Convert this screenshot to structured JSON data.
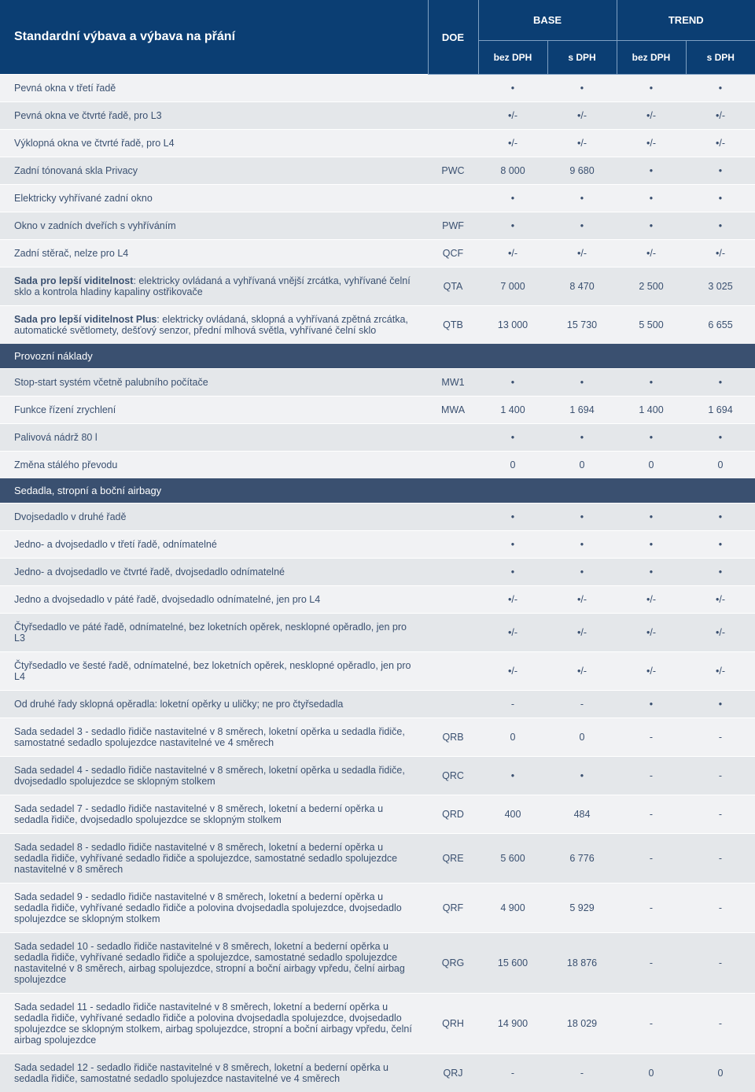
{
  "header": {
    "title": "Standardní výbava a výbava na přání",
    "doe": "DOE",
    "groups": [
      "BASE",
      "TREND"
    ],
    "subcols": [
      "bez DPH",
      "s DPH",
      "bez DPH",
      "s DPH"
    ]
  },
  "colors": {
    "header_bg": "#0b3e73",
    "header_border": "#7fa0c2",
    "section_bg": "#3a5070",
    "row_even": "#f1f2f4",
    "row_odd": "#e4e7ea",
    "text": "#3a5070"
  },
  "rows": [
    {
      "type": "data",
      "stripe": "even",
      "label": "Pevná okna v třetí řadě",
      "doe": "",
      "v": [
        "•",
        "•",
        "•",
        "•"
      ]
    },
    {
      "type": "data",
      "stripe": "odd",
      "label": "Pevná okna ve čtvrté řadě, pro L3",
      "doe": "",
      "v": [
        "•/-",
        "•/-",
        "•/-",
        "•/-"
      ]
    },
    {
      "type": "data",
      "stripe": "even",
      "label": "Výklopná okna ve čtvrté řadě, pro L4",
      "doe": "",
      "v": [
        "•/-",
        "•/-",
        "•/-",
        "•/-"
      ]
    },
    {
      "type": "data",
      "stripe": "odd",
      "label": "Zadní tónovaná skla Privacy",
      "doe": "PWC",
      "v": [
        "8 000",
        "9 680",
        "•",
        "•"
      ]
    },
    {
      "type": "data",
      "stripe": "even",
      "label": "Elektricky vyhřívané zadní okno",
      "doe": "",
      "v": [
        "•",
        "•",
        "•",
        "•"
      ]
    },
    {
      "type": "data",
      "stripe": "odd",
      "label": "Okno v zadních dveřích s vyhříváním",
      "doe": "PWF",
      "v": [
        "•",
        "•",
        "•",
        "•"
      ]
    },
    {
      "type": "data",
      "stripe": "even",
      "label": "Zadní stěrač, nelze pro L4",
      "doe": "QCF",
      "v": [
        "•/-",
        "•/-",
        "•/-",
        "•/-"
      ]
    },
    {
      "type": "data",
      "stripe": "odd",
      "bold": "Sada pro lepší viditelnost",
      "label": ": elektricky ovládaná a vyhřívaná vnější zrcátka, vyhřívané čelní sklo a kontrola hladiny kapaliny ostřikovače",
      "doe": "QTA",
      "v": [
        "7 000",
        "8 470",
        "2 500",
        "3 025"
      ]
    },
    {
      "type": "data",
      "stripe": "even",
      "bold": "Sada pro lepší viditelnost Plus",
      "label": ": elektricky ovládaná, sklopná  a vyhřívaná zpětná zrcátka, automatické světlomety, dešťový senzor, přední mlhová světla, vyhřívané čelní sklo",
      "doe": "QTB",
      "v": [
        "13 000",
        "15 730",
        "5 500",
        "6 655"
      ]
    },
    {
      "type": "section",
      "label": "Provozní náklady"
    },
    {
      "type": "data",
      "stripe": "odd",
      "label": "Stop-start systém včetně palubního počítače",
      "doe": "MW1",
      "v": [
        "•",
        "•",
        "•",
        "•"
      ]
    },
    {
      "type": "data",
      "stripe": "even",
      "label": "Funkce řízení zrychlení",
      "doe": "MWA",
      "v": [
        "1 400",
        "1 694",
        "1 400",
        "1 694"
      ]
    },
    {
      "type": "data",
      "stripe": "odd",
      "label": "Palivová nádrž 80 l",
      "doe": "",
      "v": [
        "•",
        "•",
        "•",
        "•"
      ]
    },
    {
      "type": "data",
      "stripe": "even",
      "label": "Změna stálého převodu",
      "doe": "",
      "v": [
        "0",
        "0",
        "0",
        "0"
      ]
    },
    {
      "type": "section",
      "label": "Sedadla, stropní a boční airbagy"
    },
    {
      "type": "data",
      "stripe": "odd",
      "label": "Dvojsedadlo v druhé řadě",
      "doe": "",
      "v": [
        "•",
        "•",
        "•",
        "•"
      ]
    },
    {
      "type": "data",
      "stripe": "even",
      "label": "Jedno- a dvojsedadlo v třetí řadě, odnímatelné",
      "doe": "",
      "v": [
        "•",
        "•",
        "•",
        "•"
      ]
    },
    {
      "type": "data",
      "stripe": "odd",
      "label": "Jedno- a dvojsedadlo ve čtvrté řadě, dvojsedadlo odnímatelné",
      "doe": "",
      "v": [
        "•",
        "•",
        "•",
        "•"
      ]
    },
    {
      "type": "data",
      "stripe": "even",
      "label": "Jedno a dvojsedadlo v páté řadě, dvojsedadlo odnímatelné, jen pro L4",
      "doe": "",
      "v": [
        "•/-",
        "•/-",
        "•/-",
        "•/-"
      ]
    },
    {
      "type": "data",
      "stripe": "odd",
      "label": "Čtyřsedadlo ve páté řadě, odnímatelné, bez loketních opěrek, nesklopné opěradlo, jen pro L3",
      "doe": "",
      "v": [
        "•/-",
        "•/-",
        "•/-",
        "•/-"
      ]
    },
    {
      "type": "data",
      "stripe": "even",
      "label": "Čtyřsedadlo ve šesté řadě, odnímatelné, bez loketních opěrek, nesklopné opěradlo, jen pro L4",
      "doe": "",
      "v": [
        "•/-",
        "•/-",
        "•/-",
        "•/-"
      ]
    },
    {
      "type": "data",
      "stripe": "odd",
      "label": "Od druhé řady sklopná opěradla: loketní opěrky u uličky; ne pro čtyřsedadla",
      "doe": "",
      "v": [
        "-",
        "-",
        "•",
        "•"
      ]
    },
    {
      "type": "data",
      "stripe": "even",
      "label": "Sada sedadel 3 - sedadlo řidiče nastavitelné v 8 směrech, loketní opěrka u sedadla řidiče, samostatné sedadlo spolujezdce nastavitelné ve 4 směrech",
      "doe": "QRB",
      "v": [
        "0",
        "0",
        "-",
        "-"
      ]
    },
    {
      "type": "data",
      "stripe": "odd",
      "label": "Sada sedadel 4 - sedadlo řidiče nastavitelné v 8 směrech, loketní opěrka u sedadla řidiče, dvojsedadlo spolujezdce se sklopným stolkem",
      "doe": "QRC",
      "v": [
        "•",
        "•",
        "-",
        "-"
      ]
    },
    {
      "type": "data",
      "stripe": "even",
      "label": "Sada sedadel 7 - sedadlo řidiče nastavitelné v 8 směrech, loketní a bederní opěrka u sedadla řidiče, dvojsedadlo spolujezdce se sklopným stolkem",
      "doe": "QRD",
      "v": [
        "400",
        "484",
        "-",
        "-"
      ]
    },
    {
      "type": "data",
      "stripe": "odd",
      "label": "Sada sedadel 8 - sedadlo řidiče nastavitelné v 8 směrech, loketní a bederní opěrka u sedadla řidiče, vyhřívané sedadlo řidiče a spolujezdce, samostatné sedadlo spolujezdce nastavitelné v 8 směrech",
      "doe": "QRE",
      "v": [
        "5 600",
        "6 776",
        "-",
        "-"
      ]
    },
    {
      "type": "data",
      "stripe": "even",
      "label": "Sada sedadel 9 - sedadlo řidiče nastavitelné v 8 směrech, loketní a bederní opěrka u sedadla řidiče, vyhřívané sedadlo řidiče a polovina dvojsedadla spolujezdce, dvojsedadlo spolujezdce se sklopným stolkem",
      "doe": "QRF",
      "v": [
        "4 900",
        "5 929",
        "-",
        "-"
      ]
    },
    {
      "type": "data",
      "stripe": "odd",
      "label": "Sada sedadel 10 - sedadlo řidiče nastavitelné v 8 směrech, loketní a bederní opěrka u sedadla řidiče, vyhřívané sedadlo řidiče a spolujezdce, samostatné sedadlo spolujezdce nastavitelné v 8 směrech, airbag spolujezdce, stropní a boční airbagy vpředu, čelní airbag spolujezdce",
      "doe": "QRG",
      "v": [
        "15 600",
        "18 876",
        "-",
        "-"
      ]
    },
    {
      "type": "data",
      "stripe": "even",
      "label": "Sada sedadel 11 - sedadlo řidiče nastavitelné v 8 směrech, loketní a bederní opěrka u sedadla řidiče, vyhřívané sedadlo řidiče a polovina dvojsedadla spolujezdce, dvojsedadlo spolujezdce se sklopným stolkem, airbag spolujezdce, stropní a boční airbagy vpředu, čelní airbag spolujezdce",
      "doe": "QRH",
      "v": [
        "14 900",
        "18 029",
        "-",
        "-"
      ]
    },
    {
      "type": "data",
      "stripe": "odd",
      "label": "Sada sedadel 12 - sedadlo řidiče nastavitelné v 8 směrech, loketní a bederní opěrka u sedadla řidiče, samostatné sedadlo spolujezdce nastavitelné ve 4 směrech",
      "doe": "QRJ",
      "v": [
        "-",
        "-",
        "0",
        "0"
      ]
    }
  ]
}
